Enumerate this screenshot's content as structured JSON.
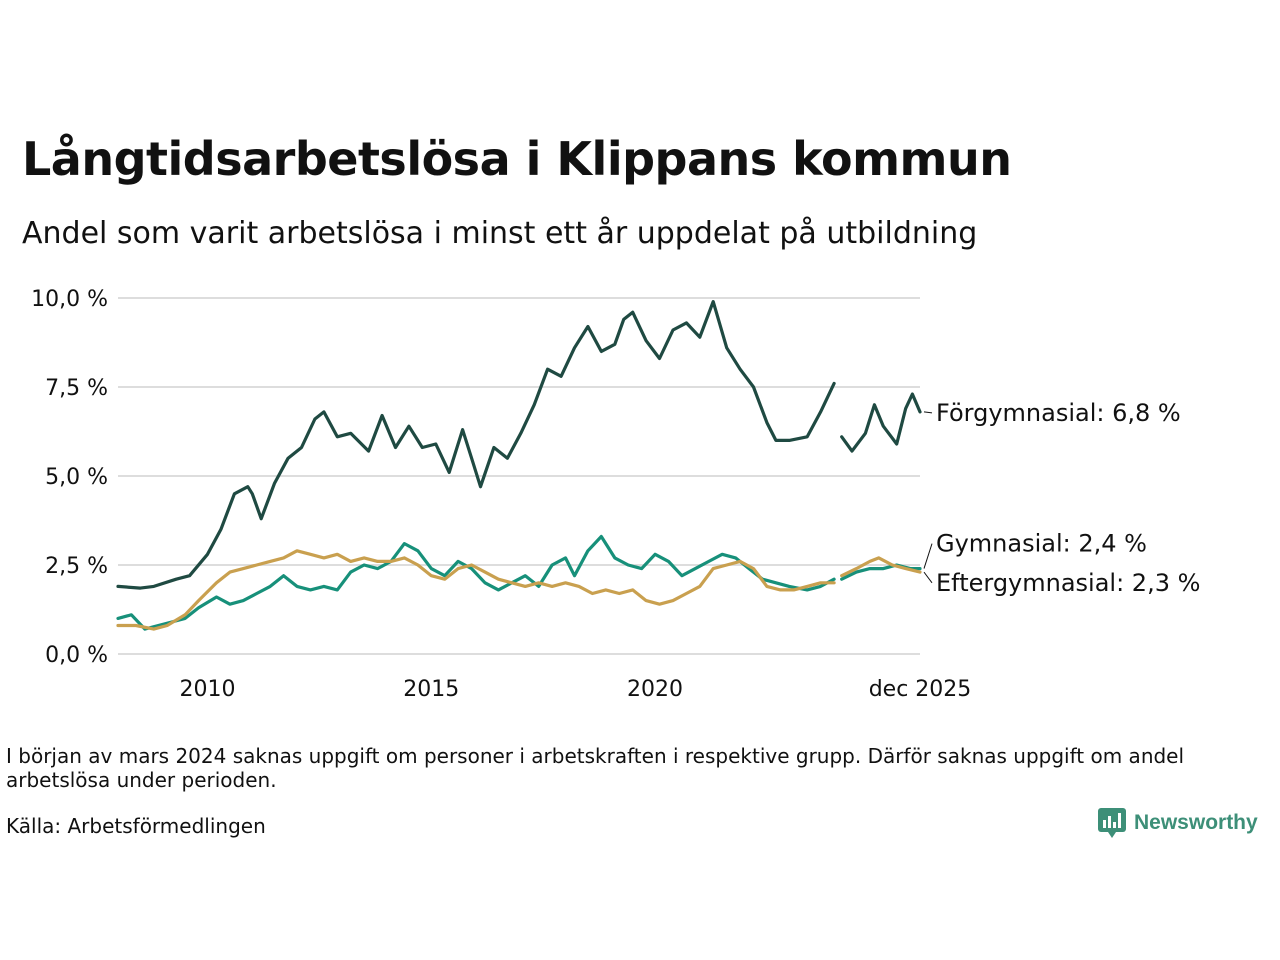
{
  "title": "Långtidsarbetslösa i Klippans kommun",
  "subtitle": "Andel som varit arbetslösa i minst ett år uppdelat på utbildning",
  "footnote": "I början av mars 2024 saknas uppgift om personer i arbetskraften i respektive grupp. Därför saknas uppgift om andel arbetslösa under perioden.",
  "source": "Källa: Arbetsförmedlingen",
  "brand": "Newsworthy",
  "colors": {
    "forgymnasial": "#1f4a42",
    "gymnasial": "#17907a",
    "eftergymnasial": "#c9a04f",
    "grid": "#dddddd"
  },
  "chart_data": {
    "type": "line",
    "title": "Långtidsarbetslösa i Klippans kommun",
    "xlabel": "",
    "ylabel": "",
    "xlim": [
      2008.0,
      2025.92
    ],
    "ylim": [
      0,
      10
    ],
    "y_ticks": [
      0,
      2.5,
      5,
      7.5,
      10
    ],
    "y_tick_labels": [
      "0,0 %",
      "2,5 %",
      "5,0 %",
      "7,5 %",
      "10,0 %"
    ],
    "x_ticks": [
      2010,
      2015,
      2020,
      2025.92
    ],
    "x_tick_labels": [
      "2010",
      "2015",
      "2020",
      "dec 2025"
    ],
    "gap": [
      2024.0,
      2024.17
    ],
    "series": [
      {
        "name": "Förgymnasial",
        "label": "Förgymnasial: 6,8 %",
        "color": "#1f4a42",
        "points": [
          [
            2008.0,
            1.9
          ],
          [
            2008.5,
            1.85
          ],
          [
            2008.8,
            1.9
          ],
          [
            2009.3,
            2.1
          ],
          [
            2009.6,
            2.2
          ],
          [
            2010.0,
            2.8
          ],
          [
            2010.3,
            3.5
          ],
          [
            2010.6,
            4.5
          ],
          [
            2010.9,
            4.7
          ],
          [
            2011.0,
            4.5
          ],
          [
            2011.2,
            3.8
          ],
          [
            2011.5,
            4.8
          ],
          [
            2011.8,
            5.5
          ],
          [
            2012.1,
            5.8
          ],
          [
            2012.4,
            6.6
          ],
          [
            2012.6,
            6.8
          ],
          [
            2012.9,
            6.1
          ],
          [
            2013.2,
            6.2
          ],
          [
            2013.6,
            5.7
          ],
          [
            2013.9,
            6.7
          ],
          [
            2014.2,
            5.8
          ],
          [
            2014.5,
            6.4
          ],
          [
            2014.8,
            5.8
          ],
          [
            2015.1,
            5.9
          ],
          [
            2015.4,
            5.1
          ],
          [
            2015.7,
            6.3
          ],
          [
            2015.9,
            5.5
          ],
          [
            2016.1,
            4.7
          ],
          [
            2016.4,
            5.8
          ],
          [
            2016.7,
            5.5
          ],
          [
            2017.0,
            6.2
          ],
          [
            2017.3,
            7.0
          ],
          [
            2017.6,
            8.0
          ],
          [
            2017.9,
            7.8
          ],
          [
            2018.2,
            8.6
          ],
          [
            2018.5,
            9.2
          ],
          [
            2018.8,
            8.5
          ],
          [
            2019.1,
            8.7
          ],
          [
            2019.3,
            9.4
          ],
          [
            2019.5,
            9.6
          ],
          [
            2019.8,
            8.8
          ],
          [
            2020.1,
            8.3
          ],
          [
            2020.4,
            9.1
          ],
          [
            2020.7,
            9.3
          ],
          [
            2021.0,
            8.9
          ],
          [
            2021.3,
            9.9
          ],
          [
            2021.6,
            8.6
          ],
          [
            2021.9,
            8.0
          ],
          [
            2022.2,
            7.5
          ],
          [
            2022.5,
            6.5
          ],
          [
            2022.7,
            6.0
          ],
          [
            2023.0,
            6.0
          ],
          [
            2023.4,
            6.1
          ],
          [
            2023.7,
            6.8
          ],
          [
            2024.0,
            7.6
          ],
          [
            2024.17,
            6.1
          ],
          [
            2024.4,
            5.7
          ],
          [
            2024.7,
            6.2
          ],
          [
            2024.9,
            7.0
          ],
          [
            2025.1,
            6.4
          ],
          [
            2025.4,
            5.9
          ],
          [
            2025.6,
            6.9
          ],
          [
            2025.75,
            7.3
          ],
          [
            2025.92,
            6.8
          ]
        ]
      },
      {
        "name": "Gymnasial",
        "label": "Gymnasial: 2,4 %",
        "color": "#17907a",
        "points": [
          [
            2008.0,
            1.0
          ],
          [
            2008.3,
            1.1
          ],
          [
            2008.6,
            0.7
          ],
          [
            2008.9,
            0.8
          ],
          [
            2009.2,
            0.9
          ],
          [
            2009.5,
            1.0
          ],
          [
            2009.8,
            1.3
          ],
          [
            2010.2,
            1.6
          ],
          [
            2010.5,
            1.4
          ],
          [
            2010.8,
            1.5
          ],
          [
            2011.1,
            1.7
          ],
          [
            2011.4,
            1.9
          ],
          [
            2011.7,
            2.2
          ],
          [
            2012.0,
            1.9
          ],
          [
            2012.3,
            1.8
          ],
          [
            2012.6,
            1.9
          ],
          [
            2012.9,
            1.8
          ],
          [
            2013.2,
            2.3
          ],
          [
            2013.5,
            2.5
          ],
          [
            2013.8,
            2.4
          ],
          [
            2014.1,
            2.6
          ],
          [
            2014.4,
            3.1
          ],
          [
            2014.7,
            2.9
          ],
          [
            2015.0,
            2.4
          ],
          [
            2015.3,
            2.2
          ],
          [
            2015.6,
            2.6
          ],
          [
            2015.9,
            2.4
          ],
          [
            2016.2,
            2.0
          ],
          [
            2016.5,
            1.8
          ],
          [
            2016.8,
            2.0
          ],
          [
            2017.1,
            2.2
          ],
          [
            2017.4,
            1.9
          ],
          [
            2017.7,
            2.5
          ],
          [
            2018.0,
            2.7
          ],
          [
            2018.2,
            2.2
          ],
          [
            2018.5,
            2.9
          ],
          [
            2018.8,
            3.3
          ],
          [
            2019.1,
            2.7
          ],
          [
            2019.4,
            2.5
          ],
          [
            2019.7,
            2.4
          ],
          [
            2020.0,
            2.8
          ],
          [
            2020.3,
            2.6
          ],
          [
            2020.6,
            2.2
          ],
          [
            2020.9,
            2.4
          ],
          [
            2021.2,
            2.6
          ],
          [
            2021.5,
            2.8
          ],
          [
            2021.8,
            2.7
          ],
          [
            2022.1,
            2.4
          ],
          [
            2022.4,
            2.1
          ],
          [
            2022.7,
            2.0
          ],
          [
            2023.0,
            1.9
          ],
          [
            2023.4,
            1.8
          ],
          [
            2023.7,
            1.9
          ],
          [
            2024.0,
            2.1
          ],
          [
            2024.17,
            2.1
          ],
          [
            2024.5,
            2.3
          ],
          [
            2024.8,
            2.4
          ],
          [
            2025.1,
            2.4
          ],
          [
            2025.4,
            2.5
          ],
          [
            2025.7,
            2.4
          ],
          [
            2025.92,
            2.4
          ]
        ]
      },
      {
        "name": "Eftergymnasial",
        "label": "Eftergymnasial: 2,3 %",
        "color": "#c9a04f",
        "points": [
          [
            2008.0,
            0.8
          ],
          [
            2008.4,
            0.8
          ],
          [
            2008.8,
            0.7
          ],
          [
            2009.1,
            0.8
          ],
          [
            2009.5,
            1.1
          ],
          [
            2009.8,
            1.5
          ],
          [
            2010.2,
            2.0
          ],
          [
            2010.5,
            2.3
          ],
          [
            2010.8,
            2.4
          ],
          [
            2011.1,
            2.5
          ],
          [
            2011.4,
            2.6
          ],
          [
            2011.7,
            2.7
          ],
          [
            2012.0,
            2.9
          ],
          [
            2012.3,
            2.8
          ],
          [
            2012.6,
            2.7
          ],
          [
            2012.9,
            2.8
          ],
          [
            2013.2,
            2.6
          ],
          [
            2013.5,
            2.7
          ],
          [
            2013.8,
            2.6
          ],
          [
            2014.1,
            2.6
          ],
          [
            2014.4,
            2.7
          ],
          [
            2014.7,
            2.5
          ],
          [
            2015.0,
            2.2
          ],
          [
            2015.3,
            2.1
          ],
          [
            2015.6,
            2.4
          ],
          [
            2015.9,
            2.5
          ],
          [
            2016.2,
            2.3
          ],
          [
            2016.5,
            2.1
          ],
          [
            2016.8,
            2.0
          ],
          [
            2017.1,
            1.9
          ],
          [
            2017.4,
            2.0
          ],
          [
            2017.7,
            1.9
          ],
          [
            2018.0,
            2.0
          ],
          [
            2018.3,
            1.9
          ],
          [
            2018.6,
            1.7
          ],
          [
            2018.9,
            1.8
          ],
          [
            2019.2,
            1.7
          ],
          [
            2019.5,
            1.8
          ],
          [
            2019.8,
            1.5
          ],
          [
            2020.1,
            1.4
          ],
          [
            2020.4,
            1.5
          ],
          [
            2020.7,
            1.7
          ],
          [
            2021.0,
            1.9
          ],
          [
            2021.3,
            2.4
          ],
          [
            2021.6,
            2.5
          ],
          [
            2021.9,
            2.6
          ],
          [
            2022.2,
            2.4
          ],
          [
            2022.5,
            1.9
          ],
          [
            2022.8,
            1.8
          ],
          [
            2023.1,
            1.8
          ],
          [
            2023.4,
            1.9
          ],
          [
            2023.7,
            2.0
          ],
          [
            2024.0,
            2.0
          ],
          [
            2024.17,
            2.2
          ],
          [
            2024.5,
            2.4
          ],
          [
            2024.8,
            2.6
          ],
          [
            2025.0,
            2.7
          ],
          [
            2025.3,
            2.5
          ],
          [
            2025.6,
            2.4
          ],
          [
            2025.92,
            2.3
          ]
        ]
      }
    ]
  }
}
